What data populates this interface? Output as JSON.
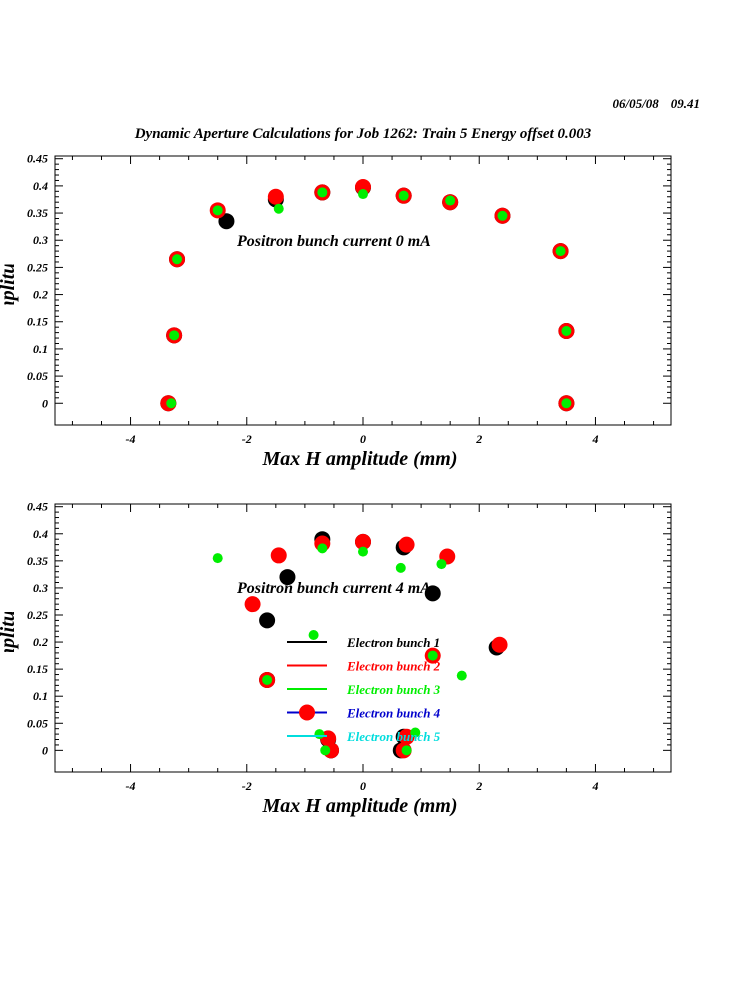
{
  "header": {
    "date": "06/05/08",
    "time": "09.41",
    "title": "Dynamic Aperture Calculations for Job 1262:  Train 5   Energy offset  0.003"
  },
  "colors": {
    "bunch1": "#000000",
    "bunch2": "#ff0000",
    "bunch3": "#00ee00",
    "bunch4": "#0000cc",
    "bunch5": "#00dddd"
  },
  "legend": [
    {
      "label": "Electron bunch 1",
      "color": "#000000",
      "marker": false
    },
    {
      "label": "Electron bunch 2",
      "color": "#ff0000",
      "marker": false
    },
    {
      "label": "Electron bunch 3",
      "color": "#00ee00",
      "marker": false
    },
    {
      "label": "Electron bunch 4",
      "color": "#0000cc",
      "marker": true
    },
    {
      "label": "Electron bunch 5",
      "color": "#00dddd",
      "marker": false
    }
  ],
  "chart_data": [
    {
      "type": "scatter",
      "annotation": "Positron bunch current  0 mA",
      "xlabel": "Max H amplitude (mm)",
      "ylabel": "Max V amplitude (mm)",
      "xlim": [
        -5.3,
        5.3
      ],
      "ylim": [
        -0.04,
        0.455
      ],
      "xticks": [
        -4,
        -2,
        0,
        2,
        4
      ],
      "yticks": [
        0,
        0.05,
        0.1,
        0.15,
        0.2,
        0.25,
        0.3,
        0.35,
        0.4,
        0.45
      ],
      "series": [
        {
          "color": "#000000",
          "size": "large",
          "x": [
            -3.35,
            -3.25,
            -3.2,
            -2.35,
            -1.5,
            -0.7,
            0.0,
            0.7,
            1.5,
            2.4,
            3.4,
            3.5,
            3.5
          ],
          "y": [
            0.0,
            0.125,
            0.265,
            0.335,
            0.375,
            0.388,
            0.397,
            0.382,
            0.37,
            0.345,
            0.28,
            0.133,
            0.0
          ]
        },
        {
          "color": "#ff0000",
          "size": "large",
          "x": [
            -3.35,
            -3.25,
            -3.2,
            -2.5,
            -1.5,
            -0.7,
            0.0,
            0.7,
            1.5,
            2.4,
            3.4,
            3.5,
            3.5
          ],
          "y": [
            0.0,
            0.125,
            0.265,
            0.355,
            0.38,
            0.388,
            0.398,
            0.382,
            0.37,
            0.345,
            0.28,
            0.133,
            0.0
          ]
        },
        {
          "color": "#00ee00",
          "size": "small",
          "x": [
            -3.3,
            -3.25,
            -3.2,
            -2.5,
            -1.45,
            -0.7,
            0.0,
            0.7,
            1.5,
            2.4,
            3.4,
            3.5,
            3.5
          ],
          "y": [
            0.0,
            0.125,
            0.265,
            0.355,
            0.358,
            0.388,
            0.385,
            0.382,
            0.373,
            0.345,
            0.28,
            0.133,
            0.0
          ]
        }
      ]
    },
    {
      "type": "scatter",
      "annotation": "Positron bunch current  4 mA",
      "xlabel": "Max H amplitude (mm)",
      "ylabel": "Max V amplitude (mm)",
      "xlim": [
        -5.3,
        5.3
      ],
      "ylim": [
        -0.04,
        0.455
      ],
      "xticks": [
        -4,
        -2,
        0,
        2,
        4
      ],
      "yticks": [
        0,
        0.05,
        0.1,
        0.15,
        0.2,
        0.25,
        0.3,
        0.35,
        0.4,
        0.45
      ],
      "series": [
        {
          "color": "#000000",
          "size": "large",
          "x": [
            -0.55,
            -0.6,
            -1.65,
            -1.65,
            -1.3,
            -0.7,
            0.0,
            0.7,
            1.2,
            2.3,
            0.65,
            0.7
          ],
          "y": [
            0.0,
            0.02,
            0.13,
            0.24,
            0.32,
            0.39,
            0.385,
            0.375,
            0.29,
            0.19,
            0.0,
            0.025
          ]
        },
        {
          "color": "#ff0000",
          "size": "large",
          "x": [
            -0.55,
            -0.6,
            -1.65,
            -1.9,
            -1.45,
            -0.7,
            0.0,
            0.75,
            1.45,
            2.35,
            1.2,
            0.7,
            0.75
          ],
          "y": [
            0.0,
            0.022,
            0.13,
            0.27,
            0.36,
            0.382,
            0.385,
            0.38,
            0.358,
            0.195,
            0.175,
            0.0,
            0.025
          ]
        },
        {
          "color": "#00ee00",
          "size": "small",
          "x": [
            -0.65,
            -0.75,
            -1.65,
            -0.85,
            -2.5,
            -0.7,
            0.0,
            0.65,
            1.35,
            1.7,
            1.2,
            0.75,
            0.9
          ],
          "y": [
            0.0,
            0.03,
            0.13,
            0.213,
            0.355,
            0.373,
            0.367,
            0.337,
            0.344,
            0.138,
            0.175,
            0.0,
            0.033
          ]
        }
      ]
    }
  ]
}
